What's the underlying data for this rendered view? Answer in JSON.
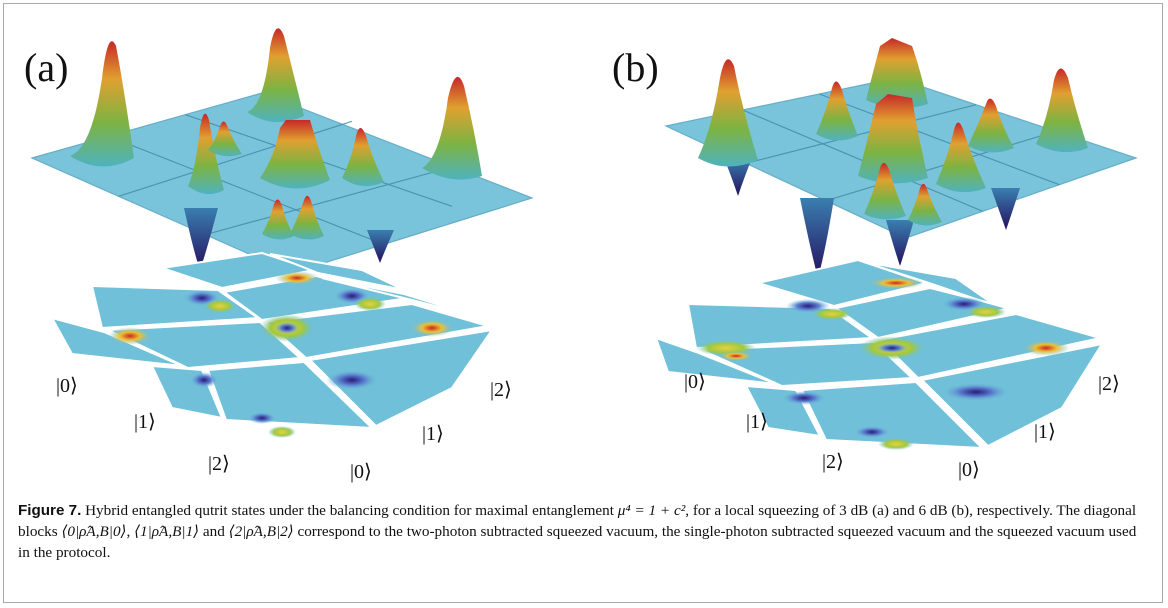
{
  "figure": {
    "panels": [
      {
        "id": "a",
        "label": "(a)",
        "kets_left": [
          "|0⟩",
          "|1⟩",
          "|2⟩"
        ],
        "kets_right": [
          "|2⟩",
          "|1⟩",
          "|0⟩"
        ]
      },
      {
        "id": "b",
        "label": "(b)",
        "kets_left": [
          "|0⟩",
          "|1⟩",
          "|2⟩"
        ],
        "kets_right": [
          "|2⟩",
          "|1⟩",
          "|0⟩"
        ]
      }
    ],
    "colors": {
      "plane": "#6fc0d8",
      "plane_edge": "#5aa8c2",
      "peak_top": "#c62828",
      "peak_mid": "#8bc34a",
      "dip": "#2a1a78"
    }
  },
  "caption": {
    "label": "Figure 7.",
    "part1": " Hybrid entangled qutrit states under the balancing condition for maximal entanglement ",
    "eq": "μ⁴ = 1 + c²",
    "part2": ", for a local squeezing of 3 dB (a) and 6 dB (b), respectively. The diagonal blocks ",
    "block0": "⟨0|ρ̂A,B|0⟩",
    "sep1": ", ",
    "block1": "⟨1|ρ̂A,B|1⟩",
    "sep2": " and ",
    "block2": "⟨2|ρ̂A,B|2⟩",
    "part3": " correspond to the two-photon subtracted squeezed vacuum, the single-photon subtracted squeezed vacuum and the squeezed vacuum used in the protocol."
  }
}
